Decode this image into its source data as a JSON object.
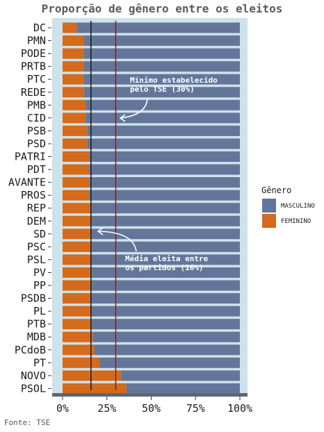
{
  "chart_data": {
    "type": "bar",
    "orientation": "horizontal",
    "stacked": true,
    "title": "Proporção de gênero entre os eleitos",
    "source": "Fonte: TSE",
    "categories": [
      "DC",
      "PMN",
      "PODE",
      "PRTB",
      "PTC",
      "REDE",
      "PMB",
      "CID",
      "PSB",
      "PSD",
      "PATRI",
      "PDT",
      "AVANTE",
      "PROS",
      "REP",
      "DEM",
      "SD",
      "PSC",
      "PSL",
      "PV",
      "PP",
      "PSDB",
      "PL",
      "PTB",
      "MDB",
      "PCdoB",
      "PT",
      "NOVO",
      "PSOL"
    ],
    "series": [
      {
        "name": "FEMININO",
        "color": "#d46a1b",
        "values": [
          0.08,
          0.12,
          0.12,
          0.12,
          0.12,
          0.12,
          0.13,
          0.13,
          0.14,
          0.14,
          0.15,
          0.15,
          0.15,
          0.15,
          0.16,
          0.16,
          0.16,
          0.16,
          0.16,
          0.16,
          0.16,
          0.16,
          0.16,
          0.16,
          0.17,
          0.18,
          0.21,
          0.33,
          0.36
        ]
      },
      {
        "name": "MASCULINO",
        "color": "#63769a",
        "values": [
          0.92,
          0.88,
          0.88,
          0.88,
          0.88,
          0.88,
          0.87,
          0.87,
          0.86,
          0.86,
          0.85,
          0.85,
          0.85,
          0.85,
          0.84,
          0.84,
          0.84,
          0.84,
          0.84,
          0.84,
          0.84,
          0.84,
          0.84,
          0.84,
          0.83,
          0.82,
          0.79,
          0.67,
          0.64
        ]
      }
    ],
    "xlim": [
      0,
      1
    ],
    "xticks": [
      0,
      0.25,
      0.5,
      0.75,
      1
    ],
    "xtick_labels": [
      "0%",
      "25%",
      "50%",
      "75%",
      "100%"
    ],
    "reference_lines": [
      {
        "value": 0.16,
        "color": "#1a1a1a",
        "label": [
          "Média eleita entre",
          "os partidos (16%)"
        ]
      },
      {
        "value": 0.3,
        "color": "#8b1a1a",
        "label": [
          "Mínimo estabelecido",
          "pelo TSE (30%)"
        ]
      }
    ],
    "legend": {
      "title": "Gênero",
      "position": "right",
      "items": [
        {
          "label": "MASCULINO",
          "color": "#63769a"
        },
        {
          "label": "FEMININO",
          "color": "#d46a1b"
        }
      ]
    },
    "panel_background": "#cde2ea"
  }
}
